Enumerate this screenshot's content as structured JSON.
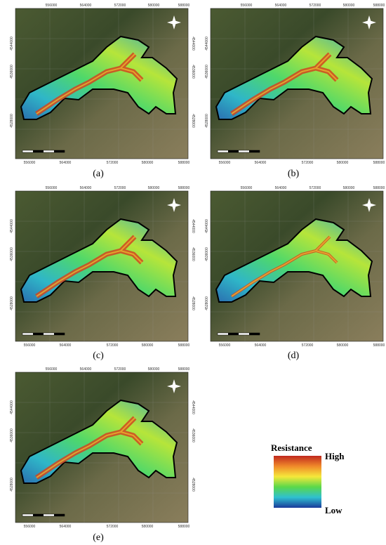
{
  "panels": [
    {
      "label": "(a)"
    },
    {
      "label": "(b)"
    },
    {
      "label": "(c)"
    },
    {
      "label": "(d)"
    },
    {
      "label": "(e)"
    }
  ],
  "axes": {
    "top": [
      "556000",
      "564000",
      "572000",
      "580000",
      "588000"
    ],
    "bottom": [
      "556000",
      "564000",
      "572000",
      "580000",
      "588000"
    ],
    "left": [
      "4544000",
      "4536000",
      "4528000"
    ]
  },
  "legend": {
    "title": "Resistance",
    "high": "High",
    "low": "Low"
  }
}
